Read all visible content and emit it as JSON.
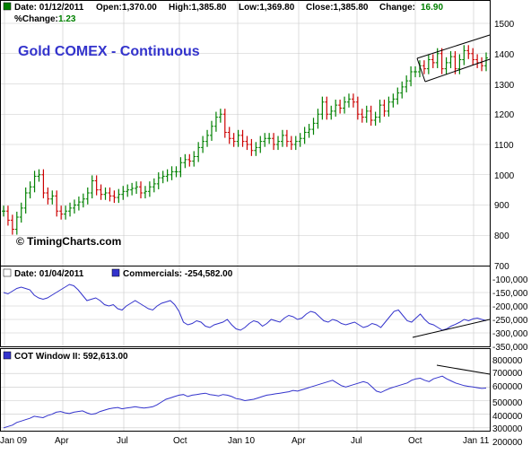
{
  "colors": {
    "up": "#008000",
    "down": "#cc0000",
    "line": "#3333cc",
    "grid": "#c8c8c8",
    "title": "#3333cc",
    "green_value": "#008000",
    "border": "#000000"
  },
  "price_panel": {
    "title": "Gold COMEX - Continuous",
    "watermark": "© TimingCharts.com",
    "header": {
      "date": "Date: 01/12/2011",
      "open": "Open:1,370.00",
      "high": "High:1,385.80",
      "low": "Low:1,369.80",
      "close": "Close:1,385.80",
      "change_label": "Change:",
      "change_value": "16.90",
      "pct_label": "%Change:",
      "pct_value": "1.23"
    },
    "y_ticks": [
      "1500",
      "1400",
      "1300",
      "1200",
      "1100",
      "1000",
      "900",
      "800",
      "700"
    ]
  },
  "commercials_panel": {
    "date_label": "Date: 01/04/2011",
    "series_label": "Commercials: -254,582.00",
    "y_ticks": [
      "-100,000",
      "-150,000",
      "-200,000",
      "-250,000",
      "-300,000",
      "-350,000"
    ]
  },
  "cot_panel": {
    "series_label": "COT Window II: 592,613.00",
    "y_ticks": [
      "800000",
      "700000",
      "600000",
      "500000",
      "400000",
      "300000",
      "200000"
    ]
  },
  "x_ticks": [
    "Jan 09",
    "Apr",
    "Jul",
    "Oct",
    "Jan 10",
    "Apr",
    "Jul",
    "Oct",
    "Jan 11"
  ],
  "chart_data": [
    {
      "type": "ohlc",
      "title": "Gold COMEX - Continuous",
      "frequency": "weekly",
      "x_range": [
        "2009-01",
        "2011-01"
      ],
      "ylim": [
        700,
        1550
      ],
      "close": [
        880,
        850,
        820,
        860,
        890,
        940,
        960,
        995,
        1000,
        940,
        920,
        930,
        880,
        870,
        880,
        890,
        900,
        910,
        920,
        940,
        980,
        950,
        935,
        940,
        930,
        925,
        935,
        945,
        950,
        955,
        960,
        940,
        945,
        960,
        970,
        990,
        995,
        1000,
        1010,
        1010,
        1040,
        1050,
        1045,
        1060,
        1090,
        1110,
        1130,
        1160,
        1190,
        1200,
        1140,
        1120,
        1110,
        1130,
        1110,
        1100,
        1080,
        1090,
        1110,
        1120,
        1120,
        1100,
        1110,
        1130,
        1110,
        1100,
        1110,
        1120,
        1140,
        1150,
        1170,
        1200,
        1240,
        1200,
        1210,
        1230,
        1220,
        1240,
        1250,
        1240,
        1200,
        1190,
        1210,
        1180,
        1190,
        1230,
        1210,
        1240,
        1250,
        1270,
        1290,
        1310,
        1340,
        1340,
        1360,
        1350,
        1380,
        1370,
        1400,
        1350,
        1370,
        1390,
        1350,
        1380,
        1410,
        1400,
        1380,
        1370,
        1360,
        1385.8
      ],
      "trend_channel": {
        "upper": [
          [
            1340,
            1380
          ],
          [
            1460,
            1540
          ]
        ],
        "note": "rising channel drawn from Oct 2010"
      }
    },
    {
      "type": "line",
      "series": [
        {
          "name": "Commercials",
          "latest": -254582,
          "values": [
            -150000,
            -155000,
            -145000,
            -135000,
            -130000,
            -135000,
            -140000,
            -160000,
            -170000,
            -175000,
            -170000,
            -160000,
            -150000,
            -140000,
            -130000,
            -120000,
            -125000,
            -140000,
            -160000,
            -180000,
            -175000,
            -170000,
            -180000,
            -195000,
            -200000,
            -195000,
            -210000,
            -215000,
            -200000,
            -190000,
            -180000,
            -190000,
            -200000,
            -210000,
            -215000,
            -200000,
            -190000,
            -185000,
            -180000,
            -195000,
            -220000,
            -260000,
            -270000,
            -265000,
            -255000,
            -260000,
            -275000,
            -280000,
            -270000,
            -265000,
            -260000,
            -250000,
            -270000,
            -285000,
            -290000,
            -280000,
            -265000,
            -255000,
            -260000,
            -275000,
            -265000,
            -250000,
            -255000,
            -260000,
            -245000,
            -235000,
            -240000,
            -250000,
            -245000,
            -230000,
            -220000,
            -225000,
            -240000,
            -255000,
            -260000,
            -250000,
            -255000,
            -265000,
            -270000,
            -265000,
            -260000,
            -270000,
            -280000,
            -275000,
            -265000,
            -270000,
            -280000,
            -260000,
            -240000,
            -220000,
            -215000,
            -235000,
            -255000,
            -260000,
            -245000,
            -230000,
            -250000,
            -265000,
            -270000,
            -280000,
            -290000,
            -285000,
            -275000,
            -268000,
            -260000,
            -250000,
            -255000,
            -248000,
            -245000,
            -250000,
            -254582
          ]
        }
      ],
      "ylim": [
        -350000,
        -100000
      ],
      "trend_line": "rising line beneath Oct 2010 – Jan 2011 lows"
    },
    {
      "type": "line",
      "series": [
        {
          "name": "COT Window II",
          "latest": 592613,
          "values": [
            300000,
            310000,
            320000,
            340000,
            350000,
            360000,
            370000,
            385000,
            380000,
            375000,
            390000,
            400000,
            415000,
            420000,
            410000,
            405000,
            415000,
            420000,
            425000,
            410000,
            400000,
            405000,
            420000,
            430000,
            440000,
            445000,
            450000,
            440000,
            445000,
            450000,
            455000,
            450000,
            445000,
            450000,
            455000,
            470000,
            490000,
            510000,
            520000,
            530000,
            540000,
            545000,
            530000,
            540000,
            545000,
            550000,
            555000,
            545000,
            540000,
            535000,
            545000,
            540000,
            530000,
            515000,
            510000,
            500000,
            505000,
            510000,
            520000,
            530000,
            540000,
            545000,
            550000,
            555000,
            560000,
            565000,
            575000,
            570000,
            580000,
            590000,
            600000,
            610000,
            620000,
            630000,
            640000,
            650000,
            630000,
            610000,
            600000,
            610000,
            620000,
            630000,
            640000,
            630000,
            600000,
            570000,
            560000,
            575000,
            590000,
            600000,
            610000,
            620000,
            630000,
            650000,
            660000,
            665000,
            650000,
            640000,
            660000,
            670000,
            680000,
            660000,
            645000,
            630000,
            620000,
            610000,
            605000,
            600000,
            595000,
            590000,
            592613
          ]
        }
      ],
      "ylim": [
        200000,
        850000
      ],
      "trend_line": "falling line across Nov 2010 – Jan 2011 highs"
    }
  ]
}
